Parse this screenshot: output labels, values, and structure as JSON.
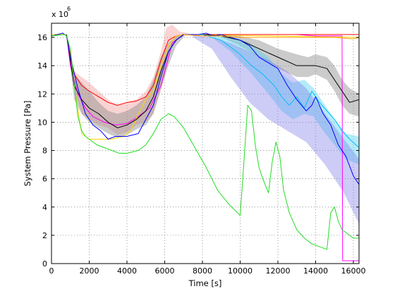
{
  "chart_data": {
    "type": "line",
    "title": "",
    "xlabel": "Time [s]",
    "ylabel": "System Pressure [Pa]",
    "y_exponent_base": "x 10",
    "y_exponent_power": "6",
    "xlim": [
      0,
      16300
    ],
    "ylim": [
      0,
      17000000
    ],
    "x_ticks": [
      0,
      2000,
      4000,
      6000,
      8000,
      10000,
      12000,
      14000,
      16000
    ],
    "x_tick_labels": [
      "0",
      "2000",
      "4000",
      "6000",
      "8000",
      "10000",
      "12000",
      "14000",
      "16000"
    ],
    "y_ticks": [
      0,
      2000000,
      4000000,
      6000000,
      8000000,
      10000000,
      12000000,
      14000000,
      16000000
    ],
    "y_tick_labels": [
      "0",
      "2",
      "4",
      "6",
      "8",
      "10",
      "12",
      "14",
      "16"
    ],
    "grid": true,
    "bands": [
      {
        "color": "#f08080",
        "alpha": 0.35,
        "points": [
          [
            800,
            16.2,
            16.2
          ],
          [
            1200,
            13.6,
            12.4
          ],
          [
            1600,
            13.2,
            10.6
          ],
          [
            2000,
            12.8,
            10.2
          ],
          [
            2500,
            12.2,
            9.8
          ],
          [
            3000,
            11.6,
            9.6
          ],
          [
            3500,
            11.2,
            9.1
          ],
          [
            4000,
            11.4,
            9.3
          ],
          [
            4500,
            11.6,
            9.8
          ],
          [
            5000,
            12.2,
            10.0
          ],
          [
            5400,
            13.2,
            10.6
          ],
          [
            5800,
            15.0,
            12.2
          ],
          [
            6100,
            16.7,
            13.8
          ],
          [
            6400,
            16.9,
            15.4
          ],
          [
            6800,
            16.4,
            16.0
          ],
          [
            7200,
            16.3,
            16.1
          ]
        ]
      },
      {
        "color": "#8c8c8c",
        "alpha": 0.45,
        "points": [
          [
            800,
            16.2,
            16.2
          ],
          [
            1200,
            13.4,
            11.6
          ],
          [
            1600,
            12.8,
            10.6
          ],
          [
            2000,
            12.2,
            10.0
          ],
          [
            2500,
            11.4,
            9.6
          ],
          [
            3000,
            10.8,
            9.2
          ],
          [
            3500,
            10.6,
            8.9
          ],
          [
            4000,
            10.8,
            9.1
          ],
          [
            4500,
            11.2,
            9.5
          ],
          [
            5000,
            11.8,
            9.8
          ],
          [
            5400,
            13.0,
            10.6
          ],
          [
            5800,
            14.6,
            12.4
          ],
          [
            6200,
            15.6,
            14.0
          ],
          [
            6600,
            16.1,
            15.4
          ],
          [
            7000,
            16.2,
            16.0
          ]
        ]
      },
      {
        "color": "#8c8c8c",
        "alpha": 0.45,
        "points": [
          [
            9000,
            16.2,
            16.0
          ],
          [
            10000,
            16.1,
            15.4
          ],
          [
            11000,
            15.8,
            14.6
          ],
          [
            12000,
            15.2,
            13.8
          ],
          [
            13000,
            14.8,
            13.2
          ],
          [
            13600,
            14.6,
            13.2
          ],
          [
            14000,
            14.8,
            13.4
          ],
          [
            14600,
            14.6,
            13.0
          ],
          [
            15000,
            14.0,
            12.2
          ],
          [
            15400,
            13.0,
            11.2
          ],
          [
            15800,
            12.4,
            10.6
          ],
          [
            16300,
            12.0,
            10.4
          ]
        ]
      },
      {
        "color": "#5bd3f0",
        "alpha": 0.45,
        "points": [
          [
            8500,
            16.2,
            16.0
          ],
          [
            9500,
            16.1,
            15.0
          ],
          [
            10500,
            15.6,
            13.6
          ],
          [
            11500,
            14.6,
            12.0
          ],
          [
            12200,
            13.4,
            10.8
          ],
          [
            12800,
            12.8,
            10.2
          ],
          [
            13400,
            13.0,
            10.6
          ],
          [
            13900,
            12.4,
            10.4
          ],
          [
            14400,
            11.4,
            9.4
          ],
          [
            15000,
            10.2,
            8.4
          ],
          [
            15600,
            9.2,
            7.4
          ],
          [
            16300,
            9.0,
            7.0
          ]
        ]
      },
      {
        "color": "#8080e8",
        "alpha": 0.4,
        "points": [
          [
            7500,
            16.2,
            16.0
          ],
          [
            8500,
            16.0,
            15.2
          ],
          [
            9500,
            15.6,
            13.2
          ],
          [
            10500,
            15.0,
            11.4
          ],
          [
            11500,
            14.4,
            10.2
          ],
          [
            12500,
            13.6,
            9.4
          ],
          [
            13500,
            12.4,
            8.6
          ],
          [
            14500,
            10.6,
            7.0
          ],
          [
            15500,
            8.8,
            5.0
          ],
          [
            16300,
            7.4,
            2.8
          ]
        ]
      }
    ],
    "series": [
      {
        "color": "#ff00ff",
        "x": [
          0,
          800,
          1000,
          1400,
          1800,
          2200,
          2800,
          3400,
          4000,
          4600,
          5200,
          5800,
          6400,
          7000,
          8000,
          9000,
          10000,
          11000,
          12000,
          13000,
          14000,
          15000,
          15400,
          15430,
          15500,
          16300
        ],
        "y": [
          16.2,
          16.2,
          14.0,
          12.0,
          11.0,
          10.4,
          10.0,
          9.8,
          9.9,
          10.4,
          11.0,
          12.6,
          15.6,
          16.2,
          16.2,
          16.2,
          16.2,
          16.2,
          16.2,
          16.2,
          16.1,
          16.1,
          16.1,
          0.2,
          0.2,
          0.2
        ]
      },
      {
        "color": "#ff0000",
        "x": [
          800,
          1200,
          1600,
          2000,
          2500,
          3000,
          3500,
          4000,
          4500,
          5000,
          5400,
          5800,
          6200,
          6600,
          7000,
          16300
        ],
        "y": [
          16.2,
          13.4,
          12.6,
          12.2,
          11.8,
          11.4,
          11.2,
          11.4,
          11.5,
          11.8,
          12.6,
          14.4,
          15.8,
          16.1,
          16.2,
          16.2
        ]
      },
      {
        "color": "#ffd700",
        "x": [
          0,
          800,
          1000,
          1300,
          1600,
          2000,
          2600,
          3200,
          3800,
          4200,
          4600,
          5000,
          5400,
          5800,
          6200,
          6600,
          7000,
          16300
        ],
        "y": [
          16.2,
          16.2,
          14.6,
          11.8,
          9.2,
          8.8,
          8.8,
          8.8,
          9.0,
          9.4,
          10.6,
          11.6,
          12.2,
          14.0,
          15.4,
          16.1,
          16.2,
          16.0
        ]
      },
      {
        "color": "#000000",
        "x": [
          800,
          1200,
          1600,
          2000,
          2500,
          3000,
          3500,
          4000,
          4500,
          5000,
          5400,
          5800,
          6200,
          6600,
          7000,
          8000,
          9000,
          10000,
          11000,
          12000,
          13000,
          14000,
          14600,
          15000,
          15400,
          15800,
          16300
        ],
        "y": [
          16.2,
          12.6,
          11.6,
          11.0,
          10.6,
          10.0,
          9.6,
          9.8,
          10.2,
          10.8,
          11.8,
          13.6,
          15.0,
          15.8,
          16.2,
          16.2,
          16.1,
          15.8,
          15.2,
          14.6,
          14.0,
          14.0,
          13.8,
          13.0,
          12.2,
          11.4,
          11.6
        ]
      },
      {
        "color": "#00bfff",
        "x": [
          7000,
          8000,
          9000,
          10000,
          10600,
          11200,
          11800,
          12200,
          12600,
          13000,
          13400,
          13800,
          14200,
          14600,
          15000,
          15400,
          15800,
          16300
        ],
        "y": [
          16.2,
          16.2,
          15.8,
          14.8,
          14.0,
          13.4,
          12.6,
          11.8,
          11.2,
          11.8,
          11.0,
          12.2,
          11.4,
          10.8,
          10.2,
          9.4,
          8.8,
          8.2
        ]
      },
      {
        "color": "#0000ff",
        "x": [
          0,
          600,
          800,
          1000,
          1400,
          1800,
          2200,
          2600,
          3000,
          3400,
          4000,
          4600,
          5000,
          5400,
          5800,
          6200,
          6600,
          7000,
          7400,
          7800,
          8200,
          8600,
          9000,
          9500,
          10000,
          10500,
          11000,
          11500,
          12000,
          12500,
          13000,
          13500,
          13800,
          14000,
          14400,
          14800,
          15200,
          15600,
          16000,
          16300
        ],
        "y": [
          16.1,
          16.3,
          16.1,
          14.6,
          12.4,
          10.6,
          9.8,
          9.4,
          8.8,
          9.0,
          9.0,
          9.2,
          10.2,
          11.2,
          13.2,
          15.0,
          15.8,
          16.2,
          16.2,
          16.2,
          16.3,
          16.1,
          16.2,
          16.0,
          15.8,
          15.4,
          14.6,
          14.2,
          13.8,
          12.6,
          11.6,
          10.8,
          11.2,
          11.8,
          10.6,
          9.8,
          8.4,
          7.6,
          6.2,
          5.6
        ]
      },
      {
        "color": "#22dd22",
        "x": [
          0,
          700,
          800,
          1000,
          1200,
          1400,
          1600,
          1800,
          2000,
          2400,
          2800,
          3200,
          3600,
          4000,
          4600,
          5000,
          5400,
          5800,
          6200,
          6500,
          7000,
          7600,
          8200,
          8800,
          9400,
          10000,
          10200,
          10400,
          10600,
          10800,
          11000,
          11200,
          11500,
          11700,
          11900,
          12100,
          12300,
          12600,
          13000,
          13400,
          13800,
          14200,
          14600,
          14800,
          15000,
          15200,
          15400,
          15600,
          15800,
          16000,
          16300
        ],
        "y": [
          16.1,
          16.2,
          16.1,
          15.2,
          12.8,
          10.4,
          9.4,
          9.0,
          8.8,
          8.4,
          8.2,
          8.0,
          7.8,
          7.8,
          8.0,
          8.4,
          9.2,
          10.2,
          10.6,
          10.4,
          9.6,
          8.2,
          6.8,
          5.2,
          4.2,
          3.4,
          7.2,
          11.2,
          10.8,
          8.4,
          6.8,
          6.0,
          5.0,
          7.2,
          8.6,
          7.6,
          5.2,
          3.6,
          2.4,
          1.8,
          1.4,
          1.2,
          1.0,
          3.6,
          4.0,
          3.0,
          2.4,
          2.2,
          2.0,
          1.8,
          1.8
        ]
      },
      {
        "color": "#ff9900",
        "x": [
          7000,
          8000,
          9000,
          10000,
          11000,
          12000,
          13000,
          14000,
          15000,
          16000,
          16300
        ],
        "y": [
          16.2,
          16.1,
          16.1,
          16.0,
          16.0,
          16.0,
          16.0,
          16.0,
          16.0,
          15.9,
          16.0
        ]
      }
    ]
  }
}
